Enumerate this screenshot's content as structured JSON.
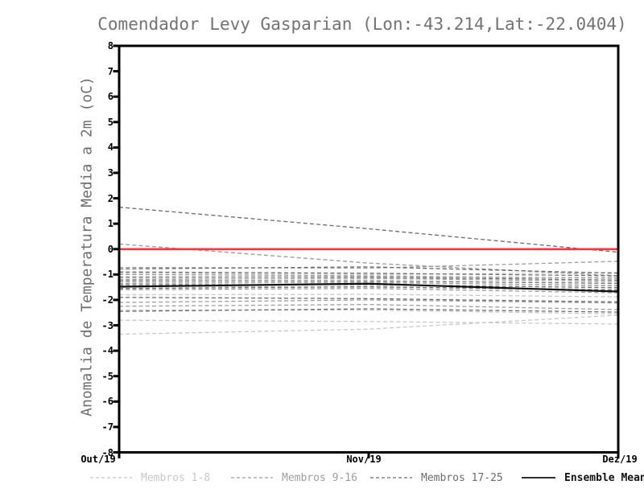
{
  "title": "Comendador Levy Gasparian (Lon:-43.214,Lat:-22.0404)",
  "y_axis": {
    "label": "Anomalia de Temperatura Media a 2m (oC)",
    "tick_values": [
      8,
      7,
      6,
      5,
      4,
      3,
      2,
      1,
      0,
      -1,
      -2,
      -3,
      -4,
      -5,
      -6,
      -7,
      -8
    ]
  },
  "x_axis": {
    "labels": [
      "Out/19",
      "Nov/19",
      "Dez/19"
    ]
  },
  "legend": [
    {
      "label": "Membros 1-8",
      "color": "#c7c7c7",
      "style": "dashed"
    },
    {
      "label": "Membros 9-16",
      "color": "#9d9d9d",
      "style": "dashed"
    },
    {
      "label": "Membros 17-25",
      "color": "#6b6b6b",
      "style": "dashed"
    },
    {
      "label": "Ensemble Mean",
      "color": "#111111",
      "style": "solid"
    }
  ],
  "colors": {
    "axis": "#000000",
    "zero_line": "#ee3c3c",
    "title_text": "#737373",
    "background": "#ffffff"
  },
  "chart_data": {
    "type": "line",
    "x": [
      "Out/19",
      "Nov/19",
      "Dez/19"
    ],
    "title": "Comendador Levy Gasparian (Lon:-43.214,Lat:-22.0404)",
    "xlabel": "",
    "ylabel": "Anomalia de Temperatura Media a 2m (oC)",
    "ylim": [
      -8,
      8
    ],
    "ytick_step": 1,
    "grid": false,
    "legend_position": "bottom",
    "zero_line": {
      "y": 0,
      "color": "#ee3c3c"
    },
    "groups": [
      {
        "name": "Membros 1-8",
        "color": "#c7c7c7",
        "line_style": "dashed",
        "members": [
          [
            -3.35,
            -3.15,
            -2.6
          ],
          [
            -2.8,
            -2.85,
            -2.95
          ],
          [
            -2.4,
            -2.4,
            -2.55
          ],
          [
            -1.8,
            -1.78,
            -1.88
          ],
          [
            -1.45,
            -1.5,
            -1.58
          ],
          [
            -1.3,
            -1.33,
            -1.42
          ],
          [
            -1.15,
            -1.18,
            -1.1
          ],
          [
            -0.95,
            -1.0,
            -0.92
          ]
        ]
      },
      {
        "name": "Membros 9-16",
        "color": "#9d9d9d",
        "line_style": "dashed",
        "members": [
          [
            0.2,
            -0.55,
            -1.05
          ],
          [
            -0.72,
            -0.75,
            -0.48
          ],
          [
            -1.0,
            -1.05,
            -1.15
          ],
          [
            -1.2,
            -1.15,
            -1.28
          ],
          [
            -1.35,
            -1.3,
            -1.45
          ],
          [
            -1.6,
            -1.55,
            -1.72
          ],
          [
            -2.1,
            -2.0,
            -2.12
          ],
          [
            -2.25,
            -2.18,
            -2.38
          ]
        ]
      },
      {
        "name": "Membros 17-25",
        "color": "#6b6b6b",
        "line_style": "dashed",
        "members": [
          [
            1.65,
            0.8,
            -0.12
          ],
          [
            -0.78,
            -0.7,
            -0.95
          ],
          [
            -0.9,
            -0.95,
            -1.05
          ],
          [
            -1.1,
            -1.1,
            -1.22
          ],
          [
            -1.25,
            -1.25,
            -1.35
          ],
          [
            -1.4,
            -1.4,
            -1.52
          ],
          [
            -1.55,
            -1.48,
            -1.62
          ],
          [
            -1.9,
            -1.95,
            -2.08
          ],
          [
            -2.45,
            -2.35,
            -2.48
          ]
        ]
      }
    ],
    "ensemble_mean": {
      "name": "Ensemble Mean",
      "color": "#111111",
      "line_style": "solid",
      "values": [
        -1.48,
        -1.36,
        -1.67
      ]
    }
  }
}
